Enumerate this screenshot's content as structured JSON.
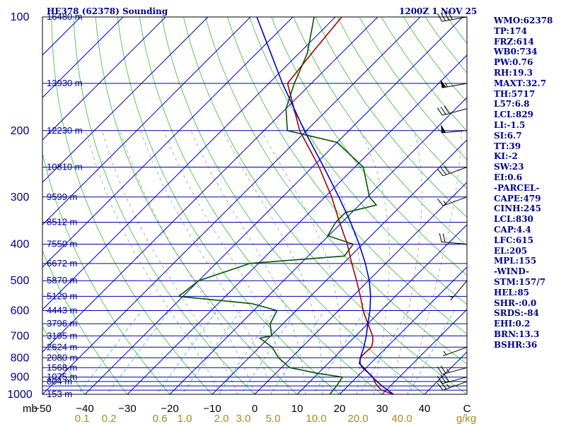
{
  "header": {
    "title": "HE378 (62378) Sounding",
    "time": "1200Z  1 NOV 25"
  },
  "indices": [
    "WMO:62378",
    "TP:174",
    "FRZ:614",
    "WB0:734",
    "PW:0.76",
    "RH:19.3",
    "MAXT:32.7",
    "TH:5717",
    "L57:6.8",
    "LCL:829",
    "LI:-1.5",
    "SI:6.7",
    "TT:39",
    "KI:-2",
    "SW:23",
    "EI:0.6",
    "-PARCEL-",
    "CAPE:479",
    "CINH:245",
    "LCL:830",
    "CAP:4.4",
    "LFC:615",
    "EL:205",
    "MPL:155",
    "-WIND-",
    "STM:157/7",
    "HEL:85",
    "SHR-:0.0",
    "SRDS:-84",
    "EHI:0.2",
    "BRN:13.3",
    "BSHR:36"
  ],
  "colors": {
    "text": "#00008b",
    "isobar": "#0000aa",
    "isotherm": "#0000cc",
    "dry_adiabat": "#33bb33",
    "mixing_ratio_text": "#aa8822",
    "mixing_ratio_line": "#44aadd",
    "moist_adiabat": "#888888",
    "temperature": "#aa0000",
    "dewpoint": "#005500",
    "parcel": "#0000cc",
    "wind_barb": "#000000"
  },
  "chart_data": {
    "type": "skew-t",
    "xlabel": "mb",
    "ylabel": "",
    "ylim": [
      1000,
      100
    ],
    "xlim": [
      -50,
      50
    ],
    "y_scale": "log",
    "grid": true,
    "pressure_ticks": [
      1000,
      900,
      800,
      700,
      600,
      500,
      400,
      300,
      200,
      100
    ],
    "isobars_mb": [
      1000,
      975,
      950,
      925,
      900,
      850,
      800,
      750,
      700,
      650,
      600,
      550,
      500,
      450,
      400,
      350,
      300,
      250,
      200,
      150,
      100
    ],
    "temperature_ticks": [
      "−50",
      "−40",
      "−30",
      "−20",
      "−10",
      "0",
      "10",
      "20",
      "30",
      "40",
      "C"
    ],
    "mixing_ratio_ticks": [
      "0.1",
      "0.2",
      "0.6",
      "1.0",
      "2.0",
      "3.0",
      "5.0",
      "10.0",
      "20.0",
      "40.0",
      "g/kg"
    ],
    "height_labels": [
      {
        "p": 1000,
        "label": "153 m"
      },
      {
        "p": 925,
        "label": "804 m"
      },
      {
        "p": 900,
        "label": "1075 m"
      },
      {
        "p": 850,
        "label": "1568 m"
      },
      {
        "p": 800,
        "label": "2080 m"
      },
      {
        "p": 750,
        "label": "2624 m"
      },
      {
        "p": 700,
        "label": "3195 m"
      },
      {
        "p": 650,
        "label": "3796 m"
      },
      {
        "p": 600,
        "label": "4443 m"
      },
      {
        "p": 550,
        "label": "5129 m"
      },
      {
        "p": 500,
        "label": "5870 m"
      },
      {
        "p": 450,
        "label": "6672 m"
      },
      {
        "p": 400,
        "label": "7550 m"
      },
      {
        "p": 350,
        "label": "8512 m"
      },
      {
        "p": 300,
        "label": "9599 m"
      },
      {
        "p": 250,
        "label": "10810 m"
      },
      {
        "p": 200,
        "label": "12230 m"
      },
      {
        "p": 150,
        "label": "13930 m"
      },
      {
        "p": 100,
        "label": "16480 m"
      }
    ],
    "series": [
      {
        "key": "temperature",
        "points": [
          [
            1000,
            32.7
          ],
          [
            975,
            28.9
          ],
          [
            950,
            26.9
          ],
          [
            925,
            25.2
          ],
          [
            900,
            23.8
          ],
          [
            875,
            21.5
          ],
          [
            850,
            19.0
          ],
          [
            825,
            17.4
          ],
          [
            800,
            16.2
          ],
          [
            775,
            16.2
          ],
          [
            750,
            16.4
          ],
          [
            725,
            15.4
          ],
          [
            700,
            14.0
          ],
          [
            650,
            10.0
          ],
          [
            600,
            5.8
          ],
          [
            550,
            1.8
          ],
          [
            500,
            -2.8
          ],
          [
            450,
            -8.0
          ],
          [
            400,
            -13.6
          ],
          [
            350,
            -20.6
          ],
          [
            300,
            -28.4
          ],
          [
            250,
            -38.4
          ],
          [
            200,
            -51.6
          ],
          [
            150,
            -65.6
          ],
          [
            125,
            -67.0
          ],
          [
            100,
            -68.5
          ]
        ]
      },
      {
        "key": "dewpoint",
        "points": [
          [
            1000,
            17.7
          ],
          [
            950,
            17.3
          ],
          [
            900,
            16.6
          ],
          [
            880,
            10.0
          ],
          [
            850,
            2.0
          ],
          [
            800,
            -3.0
          ],
          [
            750,
            -7.0
          ],
          [
            710,
            -12.0
          ],
          [
            700,
            -9.8
          ],
          [
            650,
            -13.0
          ],
          [
            600,
            -14.5
          ],
          [
            575,
            -22.0
          ],
          [
            550,
            -41.0
          ],
          [
            500,
            -40.0
          ],
          [
            450,
            -32.0
          ],
          [
            430,
            -11.5
          ],
          [
            400,
            -12.2
          ],
          [
            380,
            -20.2
          ],
          [
            350,
            -21.5
          ],
          [
            330,
            -21.5
          ],
          [
            315,
            -16.0
          ],
          [
            300,
            -19.5
          ],
          [
            250,
            -28.0
          ],
          [
            215,
            -40.0
          ],
          [
            200,
            -54.5
          ],
          [
            175,
            -60.0
          ],
          [
            150,
            -64.0
          ],
          [
            125,
            -68.0
          ],
          [
            100,
            -75.0
          ]
        ]
      },
      {
        "key": "parcel",
        "points": [
          [
            1000,
            32.7
          ],
          [
            950,
            28.0
          ],
          [
            900,
            23.6
          ],
          [
            850,
            19.4
          ],
          [
            829,
            17.4
          ],
          [
            800,
            16.3
          ],
          [
            750,
            14.6
          ],
          [
            700,
            12.5
          ],
          [
            650,
            10.0
          ],
          [
            600,
            7.4
          ],
          [
            550,
            4.2
          ],
          [
            500,
            0.2
          ],
          [
            450,
            -4.8
          ],
          [
            400,
            -10.8
          ],
          [
            350,
            -18.0
          ],
          [
            300,
            -26.7
          ],
          [
            250,
            -37.3
          ],
          [
            200,
            -50.5
          ],
          [
            150,
            -66.8
          ],
          [
            100,
            -88.5
          ]
        ]
      }
    ],
    "wind_barbs": [
      {
        "p": 925,
        "dir": 250,
        "spd": 25
      },
      {
        "p": 900,
        "dir": 255,
        "spd": 30
      },
      {
        "p": 850,
        "dir": 255,
        "spd": 25
      },
      {
        "p": 750,
        "dir": 250,
        "spd": 5
      },
      {
        "p": 500,
        "dir": 220,
        "spd": 5
      },
      {
        "p": 400,
        "dir": 275,
        "spd": 20
      },
      {
        "p": 300,
        "dir": 250,
        "spd": 15
      },
      {
        "p": 250,
        "dir": 250,
        "spd": 30
      },
      {
        "p": 200,
        "dir": 265,
        "spd": 50
      },
      {
        "p": 175,
        "dir": 255,
        "spd": 30
      },
      {
        "p": 150,
        "dir": 260,
        "spd": 55
      },
      {
        "p": 100,
        "dir": 260,
        "spd": 40
      }
    ]
  }
}
